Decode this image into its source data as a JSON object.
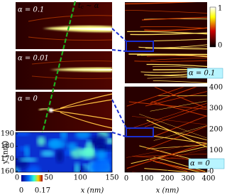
{
  "left": {
    "panels": [
      {
        "label": "α = 0.1"
      },
      {
        "label": "α = 0.01"
      },
      {
        "label": "α = 0"
      }
    ],
    "annotation": {
      "main": "t",
      "sub": "c",
      "rest": " ∼ α"
    }
  },
  "bottom_left": {
    "ylabel": "y (nm)",
    "xlabel": "x (nm)",
    "xlim": [
      0,
      150
    ],
    "ylim": [
      160,
      190
    ],
    "xticks": [
      0,
      50,
      100,
      150
    ],
    "yticks": [
      160,
      170,
      180,
      190
    ],
    "colorbar": {
      "ticks": [
        0,
        0.17
      ]
    }
  },
  "right": {
    "panels": [
      {
        "label": "α = 0.1"
      },
      {
        "label": "α = 0"
      }
    ],
    "xlabel": "x (nm)",
    "xlim": [
      0,
      400
    ],
    "ylim": [
      0,
      400
    ],
    "xticks": [
      0,
      100,
      200,
      300,
      400
    ],
    "yticks": [
      0,
      100,
      200,
      300,
      400
    ],
    "colorbar": {
      "ticks": [
        0,
        1
      ]
    }
  }
}
